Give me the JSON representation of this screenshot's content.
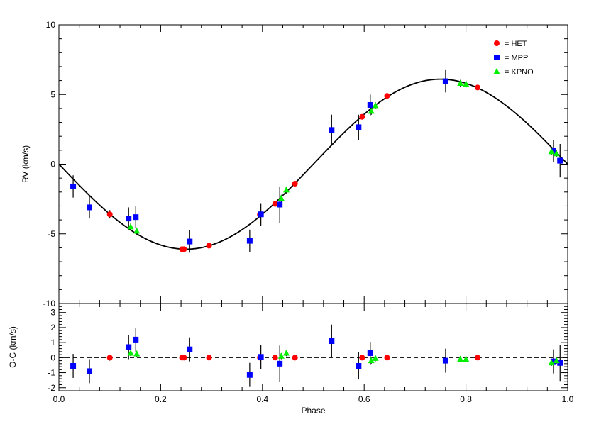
{
  "chart_data": {
    "type": "scatter",
    "x_label": "Phase",
    "xlim": [
      0.0,
      1.0
    ],
    "x_ticks": [
      0.0,
      0.2,
      0.4,
      0.6,
      0.8,
      1.0
    ],
    "x_tick_labels": [
      "0.0",
      "0.2",
      "0.4",
      "0.6",
      "0.8",
      "1.0"
    ],
    "panels": [
      {
        "id": "rv",
        "ylabel": "RV (km/s)",
        "ylim": [
          -10,
          10
        ],
        "y_ticks": [
          -10,
          -5,
          0,
          5,
          10
        ],
        "y_tick_labels": [
          "-10",
          "-5",
          "0",
          "5",
          "10"
        ],
        "model": {
          "type": "sine",
          "amplitude": 6.1,
          "phase_of_maximum": 0.75,
          "color": "#000000"
        },
        "series": [
          {
            "name": "HET",
            "marker": "circle",
            "color": "#ff0000",
            "points": [
              [
                0.1,
                -3.6,
                0.3
              ],
              [
                0.242,
                -6.1,
                0.15
              ],
              [
                0.246,
                -6.1,
                0.15
              ],
              [
                0.295,
                -5.85,
                0.15
              ],
              [
                0.395,
                -3.6,
                0.15
              ],
              [
                0.425,
                -2.85,
                0.15
              ],
              [
                0.464,
                -1.4,
                0.15
              ],
              [
                0.596,
                3.4,
                0.15
              ],
              [
                0.645,
                4.9,
                0.15
              ],
              [
                0.823,
                5.5,
                0.15
              ]
            ]
          },
          {
            "name": "MPP",
            "marker": "square",
            "color": "#0000ff",
            "points": [
              [
                0.028,
                -1.6,
                0.8
              ],
              [
                0.06,
                -3.1,
                0.8
              ],
              [
                0.137,
                -3.9,
                0.8
              ],
              [
                0.151,
                -3.8,
                0.8
              ],
              [
                0.257,
                -5.55,
                0.8
              ],
              [
                0.375,
                -5.5,
                0.8
              ],
              [
                0.397,
                -3.6,
                0.8
              ],
              [
                0.434,
                -2.9,
                1.3
              ],
              [
                0.536,
                2.45,
                1.1
              ],
              [
                0.589,
                2.65,
                0.9
              ],
              [
                0.612,
                4.25,
                0.75
              ],
              [
                0.76,
                5.95,
                0.8
              ],
              [
                0.972,
                0.95,
                0.8
              ],
              [
                0.985,
                0.25,
                1.2
              ]
            ]
          },
          {
            "name": "KPNO",
            "marker": "triangle",
            "color": "#00ee00",
            "points": [
              [
                0.141,
                -4.5,
                0.25
              ],
              [
                0.153,
                -4.8,
                0.25
              ],
              [
                0.437,
                -2.45,
                0.25
              ],
              [
                0.447,
                -1.85,
                0.25
              ],
              [
                0.614,
                3.8,
                0.25
              ],
              [
                0.622,
                4.2,
                0.25
              ],
              [
                0.789,
                5.8,
                0.25
              ],
              [
                0.8,
                5.75,
                0.25
              ],
              [
                0.968,
                0.9,
                0.25
              ],
              [
                0.978,
                0.75,
                0.25
              ]
            ]
          }
        ]
      },
      {
        "id": "residuals",
        "ylabel": "O-C (km/s)",
        "ylim": [
          -2.2,
          3.6
        ],
        "y_ticks": [
          -2,
          -1,
          0,
          1,
          2,
          3
        ],
        "y_tick_labels": [
          "-2",
          "-1",
          "0",
          "1",
          "2",
          "3"
        ],
        "zero_line": {
          "y": 0,
          "style": "dashed"
        },
        "series": [
          {
            "name": "HET",
            "marker": "circle",
            "color": "#ff0000",
            "points": [
              [
                0.1,
                0.0,
                0.2
              ],
              [
                0.242,
                0.0,
                0.1
              ],
              [
                0.246,
                0.0,
                0.1
              ],
              [
                0.295,
                0.0,
                0.1
              ],
              [
                0.395,
                0.0,
                0.1
              ],
              [
                0.425,
                0.0,
                0.1
              ],
              [
                0.464,
                0.0,
                0.1
              ],
              [
                0.596,
                0.0,
                0.1
              ],
              [
                0.645,
                0.0,
                0.1
              ],
              [
                0.823,
                0.0,
                0.1
              ]
            ]
          },
          {
            "name": "MPP",
            "marker": "square",
            "color": "#0000ff",
            "points": [
              [
                0.028,
                -0.55,
                0.8
              ],
              [
                0.06,
                -0.9,
                0.8
              ],
              [
                0.137,
                0.7,
                0.8
              ],
              [
                0.151,
                1.2,
                0.8
              ],
              [
                0.257,
                0.55,
                0.8
              ],
              [
                0.375,
                -1.15,
                0.8
              ],
              [
                0.397,
                0.05,
                0.8
              ],
              [
                0.434,
                -0.4,
                1.2
              ],
              [
                0.536,
                1.1,
                1.1
              ],
              [
                0.589,
                -0.55,
                0.9
              ],
              [
                0.612,
                0.3,
                0.75
              ],
              [
                0.76,
                -0.2,
                0.8
              ],
              [
                0.972,
                -0.25,
                0.8
              ],
              [
                0.985,
                -0.35,
                1.2
              ]
            ]
          },
          {
            "name": "KPNO",
            "marker": "triangle",
            "color": "#00ee00",
            "points": [
              [
                0.141,
                0.3,
                0.2
              ],
              [
                0.153,
                0.25,
                0.2
              ],
              [
                0.437,
                0.1,
                0.2
              ],
              [
                0.447,
                0.3,
                0.2
              ],
              [
                0.614,
                -0.2,
                0.2
              ],
              [
                0.622,
                -0.05,
                0.2
              ],
              [
                0.789,
                -0.1,
                0.2
              ],
              [
                0.8,
                -0.1,
                0.2
              ],
              [
                0.968,
                -0.35,
                0.2
              ],
              [
                0.978,
                -0.2,
                0.2
              ]
            ]
          }
        ]
      }
    ],
    "legend": {
      "placement": "top-right",
      "entries": [
        {
          "label": "= HET",
          "marker": "circle",
          "color": "#ff0000"
        },
        {
          "label": "= MPP",
          "marker": "square",
          "color": "#0000ff"
        },
        {
          "label": "= KPNO",
          "marker": "triangle",
          "color": "#00ee00"
        }
      ]
    }
  }
}
